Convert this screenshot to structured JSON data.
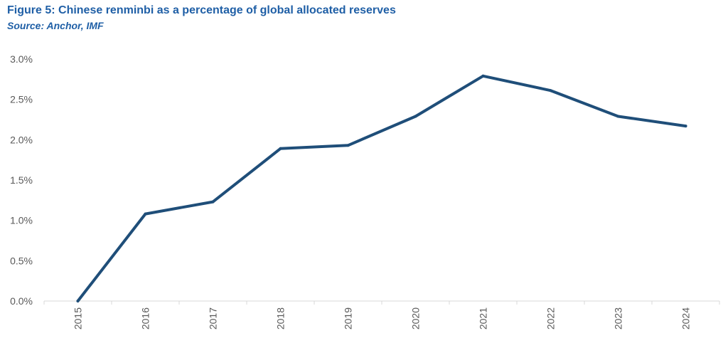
{
  "figure": {
    "title": "Figure 5: Chinese renminbi as a percentage of global allocated reserves",
    "source": "Source: Anchor, IMF"
  },
  "chart_data": {
    "type": "line",
    "title": "Figure 5: Chinese renminbi as a percentage of global allocated reserves",
    "xlabel": "",
    "ylabel": "",
    "categories": [
      "2015",
      "2016",
      "2017",
      "2018",
      "2019",
      "2020",
      "2021",
      "2022",
      "2023",
      "2024"
    ],
    "series": [
      {
        "values": [
          0.0,
          1.08,
          1.23,
          1.89,
          1.93,
          2.29,
          2.79,
          2.61,
          2.29,
          2.17
        ],
        "color": "#1f4e79"
      }
    ],
    "ylim": [
      0,
      3.0
    ],
    "yticks": [
      0.0,
      0.5,
      1.0,
      1.5,
      2.0,
      2.5,
      3.0
    ],
    "ytick_labels": [
      "0.0%",
      "0.5%",
      "1.0%",
      "1.5%",
      "2.0%",
      "2.5%",
      "3.0%"
    ],
    "grid": false,
    "legend": "none",
    "axis_color": "#d9d9d9",
    "tick_label_color": "#595959"
  }
}
